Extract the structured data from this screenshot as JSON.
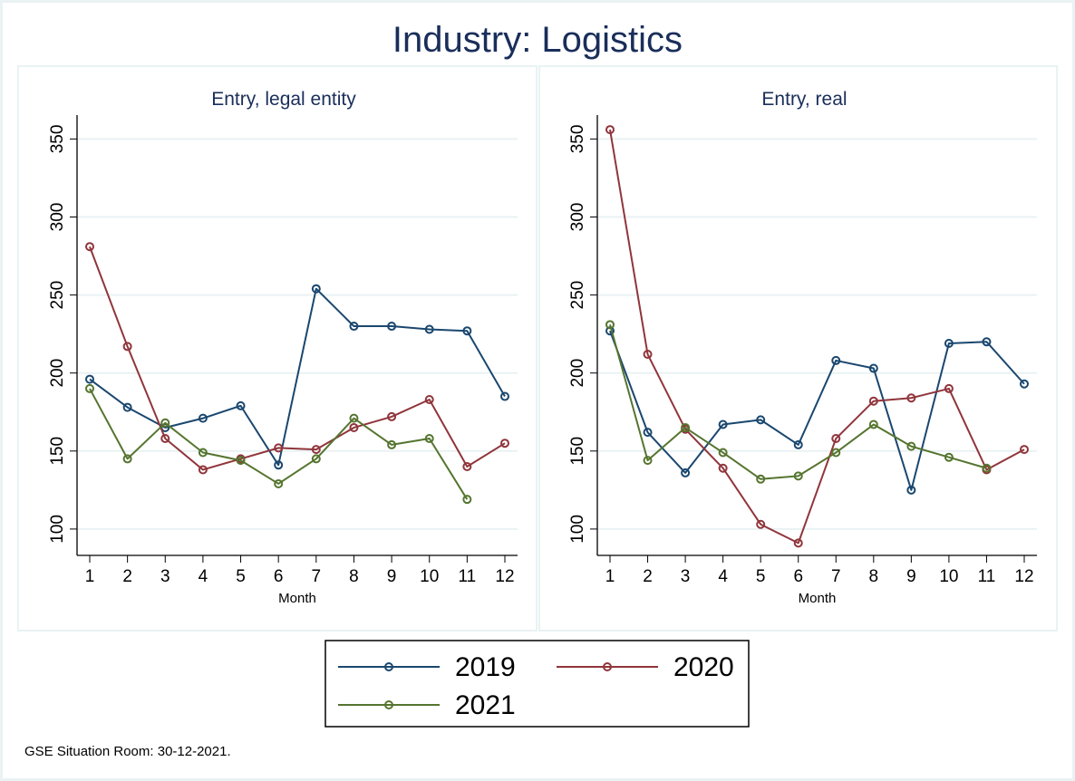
{
  "chart_data": [
    {
      "type": "line",
      "title": "Entry, legal entity",
      "xlabel": "Month",
      "ylabel": "",
      "x": [
        1,
        2,
        3,
        4,
        5,
        6,
        7,
        8,
        9,
        10,
        11,
        12
      ],
      "xticks": [
        "1",
        "2",
        "3",
        "4",
        "5",
        "6",
        "7",
        "8",
        "9",
        "10",
        "11",
        "12"
      ],
      "yticks": [
        100,
        150,
        200,
        250,
        300,
        350
      ],
      "ylim": [
        80,
        365
      ],
      "grid": true,
      "series": [
        {
          "name": "2019",
          "values": [
            196,
            178,
            165,
            171,
            179,
            141,
            254,
            230,
            230,
            228,
            227,
            185
          ]
        },
        {
          "name": "2020",
          "values": [
            281,
            217,
            158,
            138,
            145,
            152,
            151,
            165,
            172,
            183,
            140,
            155
          ]
        },
        {
          "name": "2021",
          "values": [
            190,
            145,
            168,
            149,
            144,
            129,
            145,
            171,
            154,
            158,
            119,
            null
          ]
        }
      ]
    },
    {
      "type": "line",
      "title": "Entry, real",
      "xlabel": "Month",
      "ylabel": "",
      "x": [
        1,
        2,
        3,
        4,
        5,
        6,
        7,
        8,
        9,
        10,
        11,
        12
      ],
      "xticks": [
        "1",
        "2",
        "3",
        "4",
        "5",
        "6",
        "7",
        "8",
        "9",
        "10",
        "11",
        "12"
      ],
      "yticks": [
        100,
        150,
        200,
        250,
        300,
        350
      ],
      "ylim": [
        80,
        365
      ],
      "grid": true,
      "series": [
        {
          "name": "2019",
          "values": [
            227,
            162,
            136,
            167,
            170,
            154,
            208,
            203,
            125,
            219,
            220,
            193
          ]
        },
        {
          "name": "2020",
          "values": [
            356,
            212,
            164,
            139,
            103,
            91,
            158,
            182,
            184,
            190,
            138,
            151
          ]
        },
        {
          "name": "2021",
          "values": [
            231,
            144,
            165,
            149,
            132,
            134,
            149,
            167,
            153,
            146,
            139,
            null
          ]
        }
      ]
    }
  ],
  "figure": {
    "title": "Industry: Logistics",
    "note": "GSE Situation Room: 30-12-2021.",
    "legend": {
      "placement": "bottom-center",
      "entries": [
        "2019",
        "2020",
        "2021"
      ]
    }
  },
  "colors": {
    "2019": "#1a476f",
    "2020": "#90353b",
    "2021": "#55752f",
    "title": "#1a2e5a",
    "grid": "#eaf2f3"
  }
}
